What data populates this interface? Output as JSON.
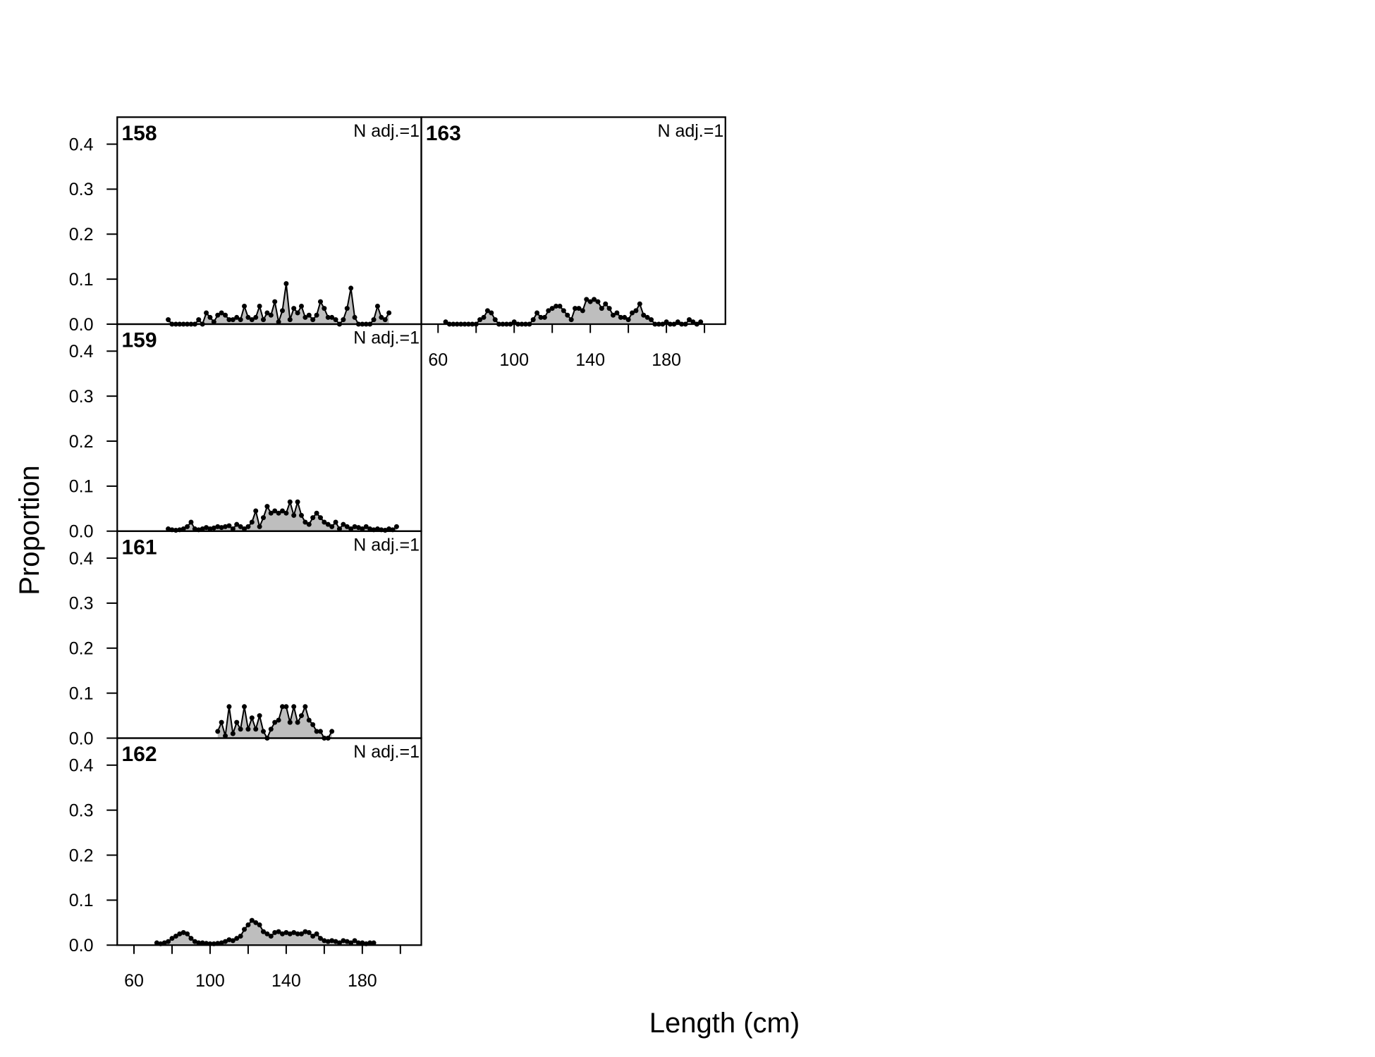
{
  "axis_labels": {
    "x": "Length (cm)",
    "y": "Proportion"
  },
  "chart_data": [
    {
      "type": "area",
      "title": "158",
      "annotation": "N adj.=1",
      "xlim": [
        51.2,
        211
      ],
      "ylim": [
        0,
        0.46
      ],
      "yticks": [
        {
          "value": 0,
          "label": "0.0"
        },
        0.1,
        0.2,
        0.3,
        0.4
      ],
      "color": "#bebebe",
      "x": [
        78,
        80,
        82,
        84,
        86,
        88,
        90,
        92,
        94,
        96,
        98,
        100,
        102,
        104,
        106,
        108,
        110,
        112,
        114,
        116,
        118,
        120,
        122,
        124,
        126,
        128,
        130,
        132,
        134,
        136,
        138,
        140,
        142,
        144,
        146,
        148,
        150,
        152,
        154,
        156,
        158,
        160,
        162,
        164,
        166,
        168,
        170,
        172,
        174,
        176,
        178,
        180,
        182,
        184,
        186,
        188,
        190,
        192,
        194
      ],
      "values": [
        0.01,
        0,
        0,
        0,
        0,
        0,
        0,
        0,
        0.01,
        0,
        0.025,
        0.015,
        0.005,
        0.02,
        0.025,
        0.02,
        0.01,
        0.01,
        0.015,
        0.01,
        0.04,
        0.015,
        0.01,
        0.015,
        0.04,
        0.01,
        0.025,
        0.02,
        0.05,
        0.005,
        0.03,
        0.09,
        0.01,
        0.035,
        0.025,
        0.04,
        0.015,
        0.02,
        0.01,
        0.02,
        0.05,
        0.035,
        0.015,
        0.015,
        0.01,
        0,
        0.01,
        0.035,
        0.08,
        0.015,
        0,
        0,
        0,
        0,
        0.01,
        0.04,
        0.015,
        0.01,
        0.025
      ]
    },
    {
      "type": "area",
      "title": "159",
      "annotation": "N adj.=1",
      "xlim": [
        51.2,
        211
      ],
      "ylim": [
        0,
        0.46
      ],
      "yticks": [
        {
          "value": 0,
          "label": "0.0"
        },
        0.1,
        0.2,
        0.3,
        0.4
      ],
      "color": "#bebebe",
      "x": [
        78,
        80,
        82,
        84,
        86,
        88,
        90,
        92,
        94,
        96,
        98,
        100,
        102,
        104,
        106,
        108,
        110,
        112,
        114,
        116,
        118,
        120,
        122,
        124,
        126,
        128,
        130,
        132,
        134,
        136,
        138,
        140,
        142,
        144,
        146,
        148,
        150,
        152,
        154,
        156,
        158,
        160,
        162,
        164,
        166,
        168,
        170,
        172,
        174,
        176,
        178,
        180,
        182,
        184,
        186,
        188,
        190,
        192,
        194,
        196,
        198
      ],
      "values": [
        0.005,
        0.003,
        0.002,
        0.003,
        0.005,
        0.01,
        0.02,
        0.005,
        0.003,
        0.005,
        0.008,
        0.005,
        0.007,
        0.01,
        0.008,
        0.01,
        0.012,
        0.005,
        0.015,
        0.01,
        0.005,
        0.01,
        0.02,
        0.045,
        0.01,
        0.03,
        0.055,
        0.04,
        0.045,
        0.04,
        0.045,
        0.04,
        0.065,
        0.035,
        0.065,
        0.035,
        0.02,
        0.015,
        0.03,
        0.04,
        0.03,
        0.02,
        0.015,
        0.01,
        0.02,
        0.005,
        0.015,
        0.01,
        0.005,
        0.01,
        0.008,
        0.005,
        0.01,
        0.005,
        0.003,
        0.005,
        0.003,
        0.002,
        0.005,
        0.003,
        0.01
      ]
    },
    {
      "type": "area",
      "title": "161",
      "annotation": "N adj.=1",
      "xlim": [
        51.2,
        211
      ],
      "ylim": [
        0,
        0.46
      ],
      "yticks": [
        {
          "value": 0,
          "label": "0.0"
        },
        0.1,
        0.2,
        0.3,
        0.4
      ],
      "color": "#bebebe",
      "x": [
        104,
        106,
        108,
        110,
        112,
        114,
        116,
        118,
        120,
        122,
        124,
        126,
        128,
        130,
        132,
        134,
        136,
        138,
        140,
        142,
        144,
        146,
        148,
        150,
        152,
        154,
        156,
        158,
        160,
        162,
        164
      ],
      "values": [
        0.015,
        0.035,
        0.005,
        0.07,
        0.01,
        0.035,
        0.02,
        0.07,
        0.02,
        0.045,
        0.02,
        0.05,
        0.015,
        0,
        0.02,
        0.035,
        0.04,
        0.07,
        0.07,
        0.035,
        0.07,
        0.035,
        0.05,
        0.07,
        0.04,
        0.03,
        0.015,
        0.015,
        0,
        0,
        0.015
      ]
    },
    {
      "type": "area",
      "title": "162",
      "annotation": "N adj.=1",
      "xlim": [
        51.2,
        211
      ],
      "ylim": [
        0,
        0.46
      ],
      "yticks": [
        {
          "value": 0,
          "label": "0.0"
        },
        0.1,
        0.2,
        0.3,
        0.4
      ],
      "xticks": [
        60,
        100,
        140,
        180
      ],
      "xminor_ticks": [
        80,
        120,
        160,
        200
      ],
      "color": "#bebebe",
      "x": [
        72,
        74,
        76,
        78,
        80,
        82,
        84,
        86,
        88,
        90,
        92,
        94,
        96,
        98,
        100,
        102,
        104,
        106,
        108,
        110,
        112,
        114,
        116,
        118,
        120,
        122,
        124,
        126,
        128,
        130,
        132,
        134,
        136,
        138,
        140,
        142,
        144,
        146,
        148,
        150,
        152,
        154,
        156,
        158,
        160,
        162,
        164,
        166,
        168,
        170,
        172,
        174,
        176,
        178,
        180,
        182,
        184,
        186
      ],
      "values": [
        0.005,
        0.003,
        0.005,
        0.008,
        0.015,
        0.02,
        0.025,
        0.028,
        0.025,
        0.015,
        0.008,
        0.005,
        0.005,
        0.004,
        0.003,
        0.003,
        0.004,
        0.005,
        0.008,
        0.012,
        0.01,
        0.015,
        0.02,
        0.035,
        0.045,
        0.055,
        0.05,
        0.045,
        0.03,
        0.025,
        0.02,
        0.028,
        0.03,
        0.025,
        0.028,
        0.025,
        0.028,
        0.025,
        0.025,
        0.03,
        0.028,
        0.02,
        0.025,
        0.015,
        0.01,
        0.008,
        0.01,
        0.008,
        0.005,
        0.01,
        0.008,
        0.005,
        0.01,
        0.005,
        0.005,
        0.003,
        0.005,
        0.005
      ]
    },
    {
      "type": "area",
      "title": "163",
      "annotation": "N adj.=1",
      "xlim": [
        51.2,
        211
      ],
      "ylim": [
        0,
        0.46
      ],
      "xticks": [
        60,
        100,
        140,
        180
      ],
      "xminor_ticks": [
        80,
        120,
        160,
        200
      ],
      "color": "#bebebe",
      "x": [
        64,
        66,
        68,
        70,
        72,
        74,
        76,
        78,
        80,
        82,
        84,
        86,
        88,
        90,
        92,
        94,
        96,
        98,
        100,
        102,
        104,
        106,
        108,
        110,
        112,
        114,
        116,
        118,
        120,
        122,
        124,
        126,
        128,
        130,
        132,
        134,
        136,
        138,
        140,
        142,
        144,
        146,
        148,
        150,
        152,
        154,
        156,
        158,
        160,
        162,
        164,
        166,
        168,
        170,
        172,
        174,
        176,
        178,
        180,
        182,
        184,
        186,
        188,
        190,
        192,
        194,
        196,
        198
      ],
      "values": [
        0.005,
        0,
        0,
        0,
        0,
        0,
        0,
        0,
        0,
        0.01,
        0.015,
        0.03,
        0.025,
        0.01,
        0,
        0,
        0,
        0,
        0.005,
        0,
        0,
        0,
        0,
        0.01,
        0.025,
        0.015,
        0.015,
        0.03,
        0.035,
        0.04,
        0.04,
        0.03,
        0.02,
        0.01,
        0.035,
        0.035,
        0.03,
        0.055,
        0.05,
        0.055,
        0.05,
        0.035,
        0.045,
        0.035,
        0.02,
        0.025,
        0.015,
        0.015,
        0.01,
        0.025,
        0.03,
        0.045,
        0.02,
        0.015,
        0.01,
        0,
        0,
        0,
        0.005,
        0,
        0,
        0.005,
        0,
        0,
        0.01,
        0.005,
        0,
        0.005
      ]
    }
  ]
}
